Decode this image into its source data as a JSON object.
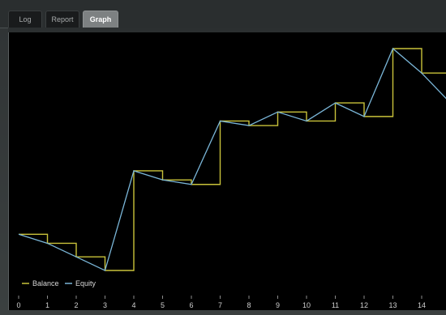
{
  "tabs": [
    {
      "label": "Log",
      "active": false
    },
    {
      "label": "Report",
      "active": false
    },
    {
      "label": "Graph",
      "active": true
    }
  ],
  "colors": {
    "balance": "#c9c23a",
    "equity": "#7ab6d8",
    "background": "#000000",
    "panel_frame": "#2f3334"
  },
  "chart_data": {
    "type": "line",
    "x_ticks": [
      "0",
      "1",
      "2",
      "3",
      "4",
      "5",
      "6",
      "7",
      "8",
      "9",
      "10",
      "11",
      "12",
      "13",
      "14"
    ],
    "legend": [
      "Balance",
      "Equity"
    ],
    "legend_position": "bottom-left",
    "grid": false,
    "series": [
      {
        "name": "Balance",
        "style": "step",
        "points": [
          [
            0,
            100
          ],
          [
            1,
            90
          ],
          [
            2,
            75
          ],
          [
            3,
            60
          ],
          [
            4,
            170
          ],
          [
            5,
            160
          ],
          [
            6,
            155
          ],
          [
            7,
            225
          ],
          [
            8,
            220
          ],
          [
            9,
            235
          ],
          [
            10,
            225
          ],
          [
            11,
            245
          ],
          [
            12,
            230
          ],
          [
            13,
            305
          ],
          [
            14,
            278
          ],
          [
            15,
            278
          ]
        ]
      },
      {
        "name": "Equity",
        "style": "line",
        "points": [
          [
            0,
            100
          ],
          [
            1,
            90
          ],
          [
            2,
            75
          ],
          [
            3,
            60
          ],
          [
            4,
            170
          ],
          [
            5,
            160
          ],
          [
            6,
            155
          ],
          [
            7,
            225
          ],
          [
            8,
            220
          ],
          [
            9,
            235
          ],
          [
            10,
            225
          ],
          [
            11,
            245
          ],
          [
            12,
            230
          ],
          [
            13,
            305
          ],
          [
            14,
            278
          ],
          [
            15,
            245
          ]
        ]
      }
    ]
  }
}
